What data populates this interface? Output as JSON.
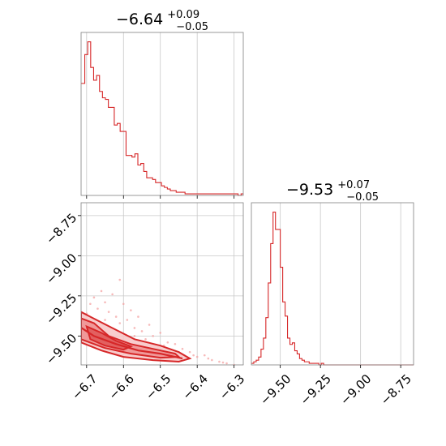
{
  "chart_data": [
    {
      "type": "histogram",
      "panel": "top-left",
      "title_main": "−6.64",
      "title_sup": "+0.09",
      "title_sub": "−0.05",
      "xlim": [
        -6.715,
        -6.275
      ],
      "x_ticks": [
        -6.7,
        -6.6,
        -6.5,
        -6.4,
        -6.3
      ],
      "x_tick_labels_shown": false,
      "y_ticks_shown": false,
      "grid": true,
      "color": "#d62728",
      "bin_edges": [
        -6.715,
        -6.705,
        -6.697,
        -6.689,
        -6.681,
        -6.673,
        -6.665,
        -6.657,
        -6.649,
        -6.641,
        -6.633,
        -6.625,
        -6.617,
        -6.609,
        -6.601,
        -6.593,
        -6.585,
        -6.577,
        -6.569,
        -6.561,
        -6.553,
        -6.545,
        -6.537,
        -6.529,
        -6.521,
        -6.513,
        -6.505,
        -6.497,
        -6.489,
        -6.481,
        -6.473,
        -6.465,
        -6.457,
        -6.449,
        -6.441,
        -6.433,
        -6.425,
        -6.417,
        -6.409,
        -6.401,
        -6.393,
        -6.385,
        -6.377,
        -6.369,
        -6.361,
        -6.353,
        -6.345,
        -6.337,
        -6.329,
        -6.321,
        -6.313,
        -6.305,
        -6.297,
        -6.289,
        -6.281,
        -6.275
      ],
      "counts": [
        70,
        88,
        96,
        80,
        72,
        75,
        65,
        61,
        60,
        55,
        55,
        44,
        45,
        40,
        40,
        25,
        25,
        24,
        26,
        19,
        20,
        15,
        11,
        11,
        10,
        8,
        8,
        6,
        5,
        4,
        3,
        3,
        2,
        2,
        2,
        1,
        1,
        1,
        1,
        1,
        1,
        1,
        1,
        1,
        1,
        1,
        1,
        1,
        1,
        1,
        1,
        1,
        1,
        0,
        1
      ]
    },
    {
      "type": "contour",
      "panel": "bottom-left",
      "xlim": [
        -6.715,
        -6.275
      ],
      "ylim": [
        -9.68,
        -8.67
      ],
      "x_ticks": [
        -6.7,
        -6.6,
        -6.5,
        -6.4,
        -6.3
      ],
      "x_tick_labels": [
        "−6.7",
        "−6.6",
        "−6.5",
        "−6.4",
        "−6.3"
      ],
      "y_ticks": [
        -8.75,
        -9.0,
        -9.25,
        -9.5
      ],
      "y_tick_labels": [
        "−8.75",
        "−9.00",
        "−9.25",
        "−9.50"
      ],
      "grid": true,
      "color": "#d62728",
      "density_ridge": [
        [
          -6.72,
          -9.44
        ],
        [
          -6.68,
          -9.5
        ],
        [
          -6.62,
          -9.55
        ],
        [
          -6.56,
          -9.59
        ],
        [
          -6.5,
          -9.61
        ],
        [
          -6.44,
          -9.64
        ]
      ],
      "outer_contour": [
        [
          -6.715,
          -9.35
        ],
        [
          -6.69,
          -9.38
        ],
        [
          -6.63,
          -9.45
        ],
        [
          -6.57,
          -9.52
        ],
        [
          -6.5,
          -9.56
        ],
        [
          -6.45,
          -9.6
        ],
        [
          -6.42,
          -9.64
        ],
        [
          -6.45,
          -9.66
        ],
        [
          -6.52,
          -9.65
        ],
        [
          -6.6,
          -9.63
        ],
        [
          -6.66,
          -9.59
        ],
        [
          -6.715,
          -9.54
        ]
      ],
      "mid_contour": [
        [
          -6.715,
          -9.39
        ],
        [
          -6.68,
          -9.42
        ],
        [
          -6.64,
          -9.5
        ],
        [
          -6.58,
          -9.55
        ],
        [
          -6.52,
          -9.58
        ],
        [
          -6.46,
          -9.61
        ],
        [
          -6.45,
          -9.63
        ],
        [
          -6.5,
          -9.635
        ],
        [
          -6.58,
          -9.61
        ],
        [
          -6.65,
          -9.575
        ],
        [
          -6.715,
          -9.52
        ]
      ],
      "inner_contour": [
        [
          -6.7,
          -9.44
        ],
        [
          -6.66,
          -9.48
        ],
        [
          -6.62,
          -9.53
        ],
        [
          -6.58,
          -9.565
        ],
        [
          -6.6,
          -9.585
        ],
        [
          -6.65,
          -9.56
        ],
        [
          -6.69,
          -9.52
        ]
      ],
      "scatter_points": [
        [
          -6.69,
          -9.3
        ],
        [
          -6.68,
          -9.26
        ],
        [
          -6.67,
          -9.33
        ],
        [
          -6.66,
          -9.22
        ],
        [
          -6.65,
          -9.29
        ],
        [
          -6.64,
          -9.35
        ],
        [
          -6.63,
          -9.24
        ],
        [
          -6.62,
          -9.38
        ],
        [
          -6.61,
          -9.15
        ],
        [
          -6.6,
          -9.3
        ],
        [
          -6.59,
          -9.4
        ],
        [
          -6.58,
          -9.34
        ],
        [
          -6.57,
          -9.45
        ],
        [
          -6.56,
          -9.38
        ],
        [
          -6.55,
          -9.47
        ],
        [
          -6.53,
          -9.43
        ],
        [
          -6.52,
          -9.5
        ],
        [
          -6.5,
          -9.48
        ],
        [
          -6.48,
          -9.54
        ],
        [
          -6.46,
          -9.55
        ],
        [
          -6.44,
          -9.58
        ],
        [
          -6.42,
          -9.6
        ],
        [
          -6.4,
          -9.63
        ],
        [
          -6.38,
          -9.62
        ],
        [
          -6.36,
          -9.65
        ],
        [
          -6.34,
          -9.66
        ],
        [
          -6.32,
          -9.67
        ],
        [
          -6.3,
          -9.68
        ],
        [
          -6.7,
          -9.36
        ],
        [
          -6.65,
          -9.4
        ],
        [
          -6.61,
          -9.42
        ],
        [
          -6.57,
          -9.5
        ],
        [
          -6.54,
          -9.52
        ],
        [
          -6.49,
          -9.56
        ],
        [
          -6.45,
          -9.6
        ],
        [
          -6.41,
          -9.62
        ],
        [
          -6.37,
          -9.64
        ],
        [
          -6.33,
          -9.665
        ]
      ]
    },
    {
      "type": "histogram",
      "panel": "bottom-right",
      "title_main": "−9.53",
      "title_sup": "+0.07",
      "title_sub": "−0.05",
      "xlim": [
        -9.68,
        -8.67
      ],
      "x_ticks": [
        -9.5,
        -9.25,
        -9.0,
        -8.75
      ],
      "x_tick_labels": [
        "−9.50",
        "−9.25",
        "−9.00",
        "−8.75"
      ],
      "y_ticks_shown": false,
      "grid": true,
      "color": "#d62728",
      "bin_edges": [
        -9.68,
        -9.665,
        -9.65,
        -9.635,
        -9.62,
        -9.605,
        -9.59,
        -9.575,
        -9.56,
        -9.545,
        -9.53,
        -9.515,
        -9.5,
        -9.485,
        -9.47,
        -9.455,
        -9.44,
        -9.425,
        -9.41,
        -9.395,
        -9.38,
        -9.365,
        -9.35,
        -9.335,
        -9.32,
        -9.305,
        -9.29,
        -9.275,
        -9.26,
        -9.245,
        -9.23,
        -9.215,
        -9.2,
        -9.185
      ],
      "counts": [
        1,
        2,
        3,
        5,
        10,
        17,
        30,
        52,
        77,
        97,
        86,
        86,
        62,
        40,
        31,
        17,
        13,
        14,
        9,
        7,
        4,
        3,
        2,
        2,
        1,
        1,
        1,
        1,
        0,
        1,
        0,
        0,
        0
      ]
    }
  ]
}
